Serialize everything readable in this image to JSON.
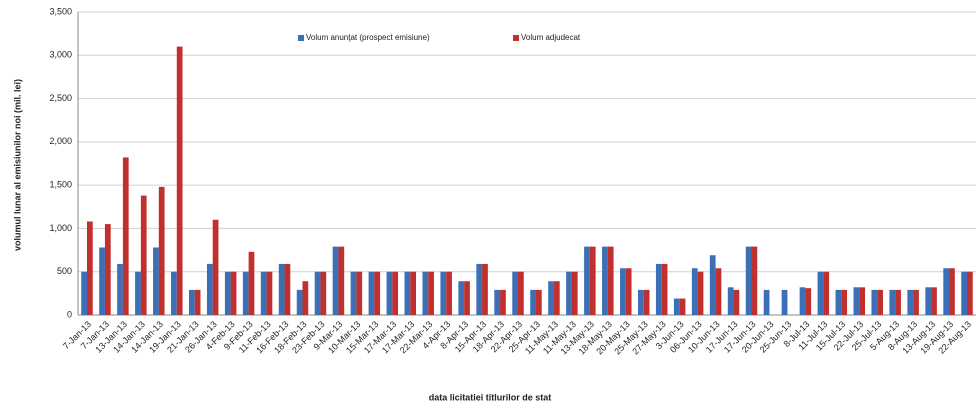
{
  "chart_data": {
    "type": "bar",
    "y_label": "volumul lunar al emisiunilor noi (mil. lei)",
    "x_label": "data  licitatiei  titlurilor de stat",
    "categories": [
      "7-Jan-13",
      "7-Jan-13",
      "13-Jan-13",
      "14-Jan-13",
      "14-Jan-13",
      "19-Jan-13",
      "21-Jan-13",
      "26-Jan-13",
      "4-Feb-13",
      "9-Feb-13",
      "11-Feb-13",
      "16-Feb-13",
      "18-Feb-13",
      "23-Feb-13",
      "9-Mar-13",
      "10-Mar-13",
      "15-Mar-13",
      "17-Mar-13",
      "17-Mar-13",
      "22-Mar-13",
      "4-Apr-13",
      "8-Apr-13",
      "15-Apr-13",
      "18-Apr-13",
      "22-Apr-13",
      "25-Apr-13",
      "11-May-13",
      "11-May-13",
      "13-May-13",
      "18-May-13",
      "20-May-13",
      "25-May-13",
      "27-May-13",
      "3-Jun-13",
      "06-Jun-13",
      "10-Jun-13",
      "17-Jun-13",
      "17-Jun-13",
      "20-Jun-13",
      "25-Jun-13",
      "8-Jul-13",
      "11-Jul-13",
      "15-Jul-13",
      "22-Jul-13",
      "25-Jul-13",
      "5-Aug-13",
      "8-Aug-13",
      "13-Aug-13",
      "19-Aug-13",
      "22-Aug-13"
    ],
    "series": [
      {
        "name": "Volum anunţat (prospect emisiune)",
        "color": "#3b6fb6",
        "values": [
          500,
          780,
          590,
          500,
          780,
          500,
          290,
          590,
          500,
          500,
          500,
          590,
          290,
          500,
          790,
          500,
          500,
          500,
          500,
          500,
          500,
          390,
          590,
          290,
          500,
          290,
          390,
          500,
          790,
          790,
          540,
          290,
          590,
          190,
          540,
          690,
          320,
          790,
          290,
          290,
          320,
          500,
          290,
          320,
          290,
          290,
          290,
          320,
          540,
          500
        ]
      },
      {
        "name": "Volum adjudecat",
        "color": "#c0302e",
        "values": [
          1080,
          1050,
          1820,
          1380,
          1480,
          3100,
          290,
          1100,
          500,
          730,
          500,
          590,
          390,
          500,
          790,
          500,
          500,
          500,
          500,
          500,
          500,
          390,
          590,
          290,
          500,
          290,
          390,
          500,
          790,
          790,
          540,
          290,
          590,
          190,
          500,
          540,
          290,
          790,
          null,
          null,
          310,
          500,
          290,
          320,
          290,
          290,
          290,
          320,
          540,
          500
        ]
      }
    ],
    "ylim": [
      0,
      3500
    ],
    "yticks": [
      0,
      500,
      {
        "value": 1000,
        "label": "1,000"
      },
      {
        "value": 1500,
        "label": "1,500"
      },
      {
        "value": 2000,
        "label": "2,000"
      },
      {
        "value": 2500,
        "label": "2,500"
      },
      {
        "value": 3000,
        "label": "3,000"
      },
      {
        "value": 3500,
        "label": "3,500"
      }
    ],
    "grid": true,
    "legend": "top"
  }
}
